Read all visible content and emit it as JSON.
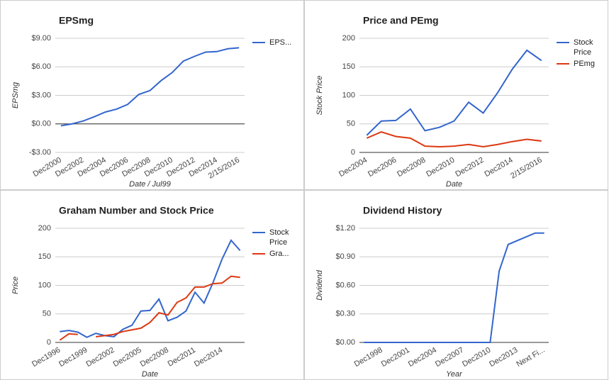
{
  "chart_data": [
    {
      "type": "line",
      "title": "EPSmg",
      "ylabel": "EPSmg",
      "xlabel": "Date / Jul99",
      "legend": "right",
      "grid": true,
      "categories": [
        "Dec2000",
        null,
        "Dec2002",
        null,
        "Dec2004",
        null,
        "Dec2006",
        null,
        "Dec2008",
        null,
        "Dec2010",
        null,
        "Dec2012",
        null,
        "Dec2014",
        null,
        "2/15/2016"
      ],
      "series": [
        {
          "name": "EPS...",
          "color": "#3366cc",
          "values": [
            -0.2,
            0.0,
            0.3,
            0.75,
            1.25,
            1.55,
            2.05,
            3.1,
            3.5,
            4.55,
            5.4,
            6.6,
            7.1,
            7.55,
            7.6,
            7.9,
            8.0
          ]
        }
      ],
      "ylim": [
        -3,
        9
      ],
      "yticks": [
        {
          "value": -3,
          "label": "-$3.00"
        },
        {
          "value": 0,
          "label": "$0.00"
        },
        {
          "value": 3,
          "label": "$3.00"
        },
        {
          "value": 6,
          "label": "$6.00"
        },
        {
          "value": 9,
          "label": "$9.00"
        }
      ]
    },
    {
      "type": "line",
      "title": "Price and PEmg",
      "ylabel": "Stock Price",
      "xlabel": "Date",
      "legend": "right",
      "grid": true,
      "categories": [
        "Dec2004",
        null,
        "Dec2006",
        null,
        "Dec2008",
        null,
        "Dec2010",
        null,
        "Dec2012",
        null,
        "Dec2014",
        null,
        "2/15/2016"
      ],
      "series": [
        {
          "name": "Stock Price",
          "color": "#3366cc",
          "values": [
            30,
            55,
            56,
            76,
            38,
            44,
            55,
            88,
            69,
            105,
            146,
            179,
            161
          ]
        },
        {
          "name": "PEmg",
          "color": "#dc3912",
          "values": [
            25,
            36,
            28,
            25,
            11,
            10,
            11,
            14,
            10,
            14,
            19,
            23,
            20
          ]
        }
      ],
      "ylim": [
        0,
        200
      ],
      "yticks": [
        0,
        50,
        100,
        150,
        200
      ]
    },
    {
      "type": "line",
      "title": "Graham Number and Stock Price",
      "ylabel": "Price",
      "xlabel": "Date",
      "legend": "right",
      "grid": true,
      "categories": [
        "Dec1996",
        null,
        null,
        "Dec1999",
        null,
        null,
        "Dec2002",
        null,
        null,
        "Dec2005",
        null,
        null,
        "Dec2008",
        null,
        null,
        "Dec2011",
        null,
        null,
        "Dec2014",
        null,
        null
      ],
      "series": [
        {
          "name": "Stock Price",
          "color": "#3366cc",
          "values": [
            19,
            21,
            18,
            9,
            16,
            12,
            10,
            23,
            30,
            55,
            56,
            76,
            38,
            44,
            55,
            88,
            69,
            105,
            146,
            179,
            161
          ]
        },
        {
          "name": "Gra...",
          "color": "#dc3912",
          "values": [
            4,
            15,
            14,
            null,
            10,
            12,
            14,
            19,
            22,
            25,
            35,
            52,
            48,
            70,
            78,
            97,
            97,
            103,
            104,
            116,
            114
          ]
        }
      ],
      "ylim": [
        0,
        200
      ],
      "yticks": [
        0,
        50,
        100,
        150,
        200
      ]
    },
    {
      "type": "line",
      "title": "Dividend History",
      "ylabel": "Dividend",
      "xlabel": "Year",
      "grid": true,
      "categories": [
        null,
        null,
        "Dec1998",
        null,
        null,
        "Dec2001",
        null,
        null,
        "Dec2004",
        null,
        null,
        "Dec2007",
        null,
        null,
        "Dec2010",
        null,
        null,
        "Dec2013",
        null,
        null,
        "Next Fi..."
      ],
      "series": [
        {
          "color": "#3366cc",
          "values": [
            0,
            0,
            0,
            0,
            0,
            0,
            0,
            0,
            0,
            0,
            0,
            0,
            0,
            0,
            0,
            0.75,
            1.03,
            1.07,
            1.11,
            1.15,
            1.15
          ]
        }
      ],
      "ylim": [
        0,
        1.2
      ],
      "yticks": [
        {
          "value": 0,
          "label": "$0.00"
        },
        {
          "value": 0.3,
          "label": "$0.30"
        },
        {
          "value": 0.6,
          "label": "$0.60"
        },
        {
          "value": 0.9,
          "label": "$0.90"
        },
        {
          "value": 1.2,
          "label": "$1.20"
        }
      ]
    }
  ]
}
